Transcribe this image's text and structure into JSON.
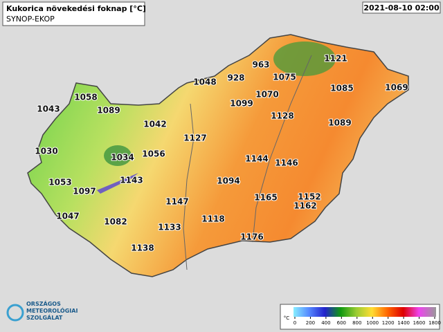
{
  "header": {
    "title": "Kukorica növekedési foknap [°C]",
    "subtitle": "SYNOP-EKOP",
    "datetime": "2021-08-10 02:00"
  },
  "stations": [
    1121,
    963,
    1075,
    928,
    1048,
    1070,
    1085,
    1069,
    1058,
    1043,
    1089,
    1099,
    1128,
    1042,
    1089,
    1127,
    1030,
    1034,
    1056,
    1144,
    1146,
    1053,
    1143,
    1094,
    1097,
    1165,
    1152,
    1162,
    1147,
    1047,
    1082,
    1118,
    1133,
    1176,
    1138
  ],
  "colorbar": {
    "unit": "°C",
    "ticks": [
      0,
      200,
      400,
      600,
      800,
      1000,
      1200,
      1400,
      1600,
      1800
    ]
  },
  "logo": {
    "lines": [
      "ORSZÁGOS",
      "METEOROLÓGIAI",
      "SZOLGÁLAT"
    ]
  }
}
